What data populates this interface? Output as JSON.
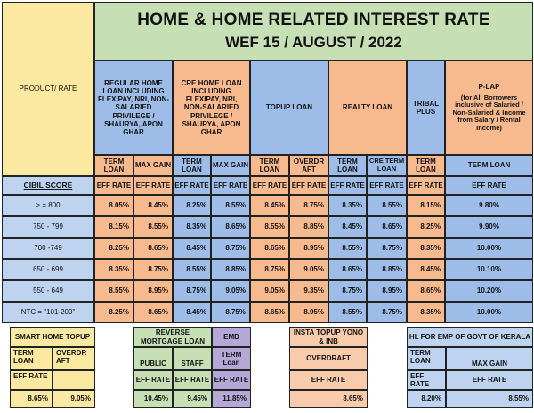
{
  "title": {
    "line1": "HOME & HOME RELATED INTEREST RATE",
    "line2": "WEF 15 / AUGUST / 2022"
  },
  "product_rate_label": "PRODUCT/  RATE",
  "products": {
    "regular": "REGULAR HOME LOAN INCLUDING FLEXIPAY, NRI, NON-SALARIED PRIVILEGE / SHAURYA, APON GHAR",
    "cre": "CRE HOME LOAN INCLUDING FLEXIPAY, NRI, NON-SALARIED PRIVILEGE / SHAURYA, APON GHAR",
    "topup": "TOPUP LOAN",
    "realty": "REALTY LOAN",
    "tribal": "TRIBAL PLUS",
    "plap_title": "P-LAP",
    "plap_desc": "(for All Borrowers inclusive of Salaried / Non-Salaried & Income from Salary / Rental Income)"
  },
  "sub_headers": {
    "term_loan": "TERM LOAN",
    "max_gain": "MAX GAIN",
    "overdraft": "OVERDR AFT",
    "cre_term_loan": "CRE TERM LOAN",
    "eff_rate": "EFF RATE",
    "cibil_score": "CIBIL SCORE"
  },
  "rows": [
    {
      "score": "> = 800",
      "rates": [
        "8.05%",
        "8.45%",
        "8.25%",
        "8.55%",
        "8.45%",
        "8.75%",
        "8.35%",
        "8.55%",
        "8.15%",
        "9.80%"
      ]
    },
    {
      "score": "750 - 799",
      "rates": [
        "8.15%",
        "8.55%",
        "8.35%",
        "8.65%",
        "8.55%",
        "8.85%",
        "8.45%",
        "8.65%",
        "8.25%",
        "9.90%"
      ]
    },
    {
      "score": "700 -749",
      "rates": [
        "8.25%",
        "8.65%",
        "8.45%",
        "8.75%",
        "8.65%",
        "8.95%",
        "8.55%",
        "8.75%",
        "8.35%",
        "10.00%"
      ]
    },
    {
      "score": "650 - 699",
      "rates": [
        "8.35%",
        "8.75%",
        "8.55%",
        "8.85%",
        "8.75%",
        "9.05%",
        "8.65%",
        "8.85%",
        "8.45%",
        "10.10%"
      ]
    },
    {
      "score": "550 - 649",
      "rates": [
        "8.55%",
        "8.95%",
        "8.75%",
        "9.05%",
        "9.05%",
        "9.35%",
        "8.75%",
        "8.95%",
        "8.65%",
        "10.20%"
      ]
    },
    {
      "score": "NTC = \"101-200\"",
      "rates": [
        "8.25%",
        "8.65%",
        "8.45%",
        "8.75%",
        "8.65%",
        "8.95%",
        "8.55%",
        "8.75%",
        "8.35%",
        "10.00%"
      ]
    }
  ],
  "bottom": {
    "smart_home": {
      "title": "SMART HOME TOPUP",
      "col1": "TERM LOAN",
      "col2": "OVERDR AFT",
      "eff": "EFF RATE",
      "v1": "8.65%",
      "v2": "9.05%"
    },
    "reverse_mortgage": {
      "title": "REVERSE MORTGAGE LOAN",
      "col1": "PUBLIC",
      "col2": "STAFF",
      "eff": "EFF RATE",
      "v1": "10.45%",
      "v2": "9.45%"
    },
    "emd": {
      "title": "EMD",
      "col1": "TERM Loan",
      "eff": "EFF RATE",
      "v1": "11.85%"
    },
    "insta_topup": {
      "title": "INSTA TOPUP YONO & INB",
      "col1": "OVERDRAFT",
      "eff": "EFF RATE",
      "v1": "8.65%"
    },
    "hl_kerala": {
      "title": "HL FOR EMP OF GOVT OF KERALA",
      "col1": "TERM LOAN",
      "col2": "MAX GAIN",
      "eff": "EFF RATE",
      "v1": "8.20%",
      "v2": "8.55%"
    }
  }
}
